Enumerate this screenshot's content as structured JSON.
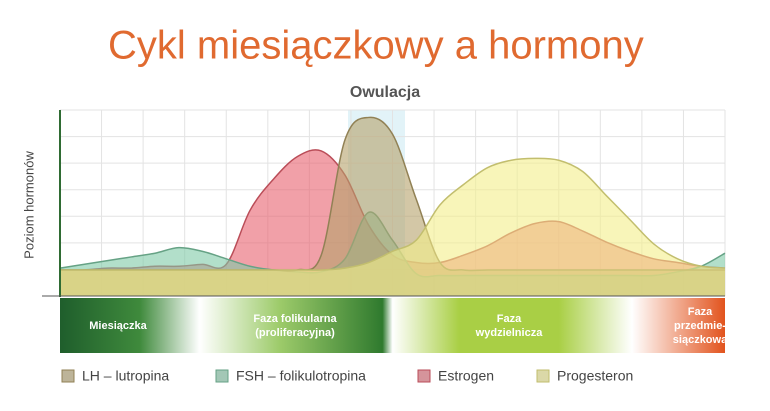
{
  "chart_data": {
    "type": "area",
    "title": "Cykl miesiączkowy a hormony",
    "ylabel": "Poziom hormonów",
    "annotation": "Owulacja",
    "categories": [
      null,
      null,
      null,
      null,
      null,
      null,
      null,
      null,
      null,
      null,
      null,
      null,
      null,
      null,
      null,
      null,
      null,
      null,
      null,
      null,
      null,
      null,
      null,
      null,
      null,
      null,
      null,
      null,
      null
    ],
    "ylim": [
      0,
      100
    ],
    "grid": true,
    "legend": "bottom",
    "series": [
      {
        "name": "Estrogen",
        "color": "#e8606e",
        "values": [
          14,
          14,
          15,
          15,
          16,
          16,
          17,
          17,
          46,
          63,
          75,
          78,
          65,
          38,
          22,
          18,
          18,
          22,
          27,
          34,
          39,
          40,
          35,
          29,
          24,
          20,
          18,
          16,
          15
        ]
      },
      {
        "name": "FSH – folikulotropina",
        "color": "#7fcaa6",
        "values": [
          15,
          17,
          19,
          21,
          23,
          26,
          24,
          20,
          16,
          14,
          13,
          13,
          20,
          45,
          30,
          12,
          11,
          11,
          11,
          11,
          11,
          11,
          11,
          11,
          11,
          11,
          13,
          16,
          23
        ]
      },
      {
        "name": "LH – lutropina",
        "color": "#b5a16a",
        "values": [
          14,
          14,
          14,
          14,
          14,
          14,
          14,
          14,
          14,
          14,
          14,
          22,
          84,
          96,
          87,
          52,
          18,
          14,
          14,
          14,
          14,
          14,
          14,
          14,
          14,
          14,
          14,
          14,
          14
        ]
      },
      {
        "name": "Progesteron",
        "color": "#f3ee8a",
        "values": [
          14,
          14,
          14,
          14,
          14,
          14,
          14,
          14,
          14,
          14,
          14,
          14,
          15,
          18,
          24,
          30,
          49,
          60,
          69,
          73,
          74,
          73,
          67,
          54,
          41,
          28,
          20,
          16,
          15
        ]
      }
    ],
    "phases": [
      [
        "Miesiączka"
      ],
      [
        "Faza folikularna",
        "(proliferacyjna)"
      ],
      [
        "Faza",
        "wydzielnicza"
      ],
      [
        "Faza",
        "przedmie-",
        "siączkowa"
      ]
    ]
  }
}
